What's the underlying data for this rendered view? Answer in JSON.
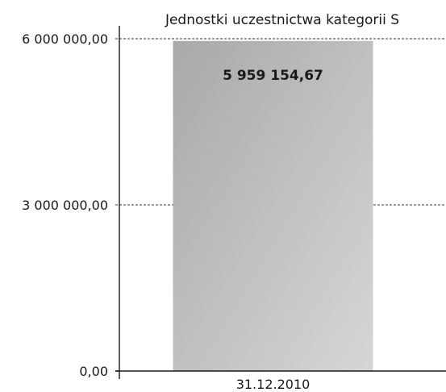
{
  "chart_data": {
    "type": "bar",
    "title": "Jednostki uczestnictwa kategorii S",
    "categories": [
      "31.12.2010"
    ],
    "values": [
      5959154.67
    ],
    "value_labels": [
      "5 959 154,67"
    ],
    "ylim": [
      0,
      6000000
    ],
    "yticks": [
      0,
      3000000,
      6000000
    ],
    "ytick_labels": [
      "0,00",
      "3 000 000,00",
      "6 000 000,00"
    ],
    "xlabel": "",
    "ylabel": "",
    "grid": true,
    "legend": false,
    "colors": {
      "bar_dark": "#a8a9ab",
      "bar_light": "#d6d6d7",
      "grid": "#333333",
      "axis": "#1a1a1a"
    }
  }
}
